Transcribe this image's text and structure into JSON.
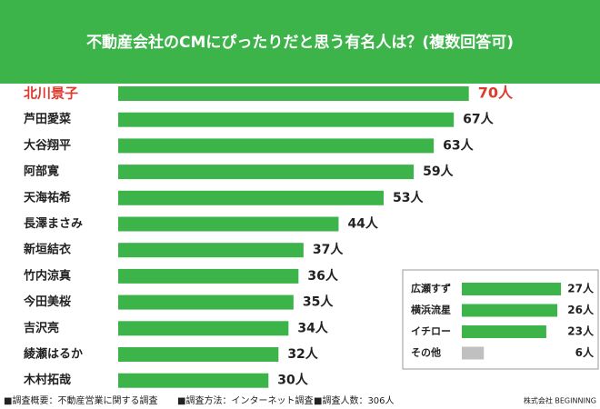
{
  "chart_data": [
    {
      "type": "hbar",
      "title": "不動産会社のCMにぴったりだと思う有名人は？(複数回答可)",
      "categories": [
        "北川景子",
        "芦田愛菜",
        "大谷翔平",
        "阿部寛",
        "天海祐希",
        "長澤まさみ",
        "新垣結衣",
        "竹内涼真",
        "今田美桜",
        "吉沢亮",
        "綾瀬はるか",
        "木村拓哉"
      ],
      "values": [
        70,
        67,
        63,
        59,
        53,
        44,
        37,
        36,
        35,
        34,
        32,
        30
      ],
      "value_labels": [
        "70人",
        "67人",
        "63人",
        "59人",
        "53人",
        "44人",
        "37人",
        "36人",
        "35人",
        "34人",
        "32人",
        "30人"
      ],
      "color": "#3cb44a",
      "highlight": {
        "index": 0,
        "color": "#e0392d"
      }
    },
    {
      "type": "hbar",
      "categories": [
        "広瀬すず",
        "横浜流星",
        "イチロー",
        "その他"
      ],
      "values": [
        27,
        26,
        23,
        6
      ],
      "value_labels": [
        "27人",
        "26人",
        "23人",
        "6人"
      ],
      "colors": [
        "#3cb44a",
        "#3cb44a",
        "#3cb44a",
        "#c0c0c0"
      ]
    }
  ],
  "notes": [
    "■調査概要：不動産営業に関する調査",
    "■調査方法：インターネット調査",
    "■調査人数：306人"
  ],
  "source": "株式会社 BEGINNING"
}
